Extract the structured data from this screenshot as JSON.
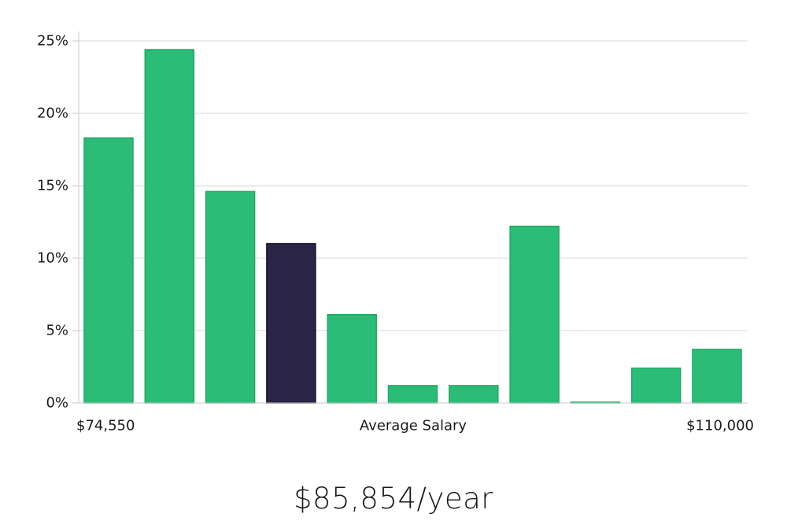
{
  "chart_data": {
    "type": "bar",
    "categories": [
      "",
      "",
      "",
      "",
      "",
      "",
      "",
      "",
      "",
      "",
      ""
    ],
    "values": [
      18.3,
      24.4,
      14.6,
      11.0,
      6.1,
      1.2,
      1.2,
      12.2,
      0.05,
      2.4,
      3.7
    ],
    "highlight_index": 3,
    "colors": {
      "bar": "#2bbd77",
      "bar_stroke": "#22a765",
      "highlight": "#2a2547",
      "highlight_stroke": "#141127",
      "grid": "#d9d9dc",
      "axis": "#c8c8cc"
    },
    "ylim": [
      0,
      25
    ],
    "yticks": [
      0,
      5,
      10,
      15,
      20,
      25
    ],
    "ytick_labels": [
      "0%",
      "5%",
      "10%",
      "15%",
      "20%",
      "25%"
    ],
    "y_unit": "%",
    "grid": true,
    "x_min_label": "$74,550",
    "x_max_label": "$110,000",
    "xlabel": "Average Salary"
  },
  "summary": {
    "salary_text": "$85,854/year"
  }
}
